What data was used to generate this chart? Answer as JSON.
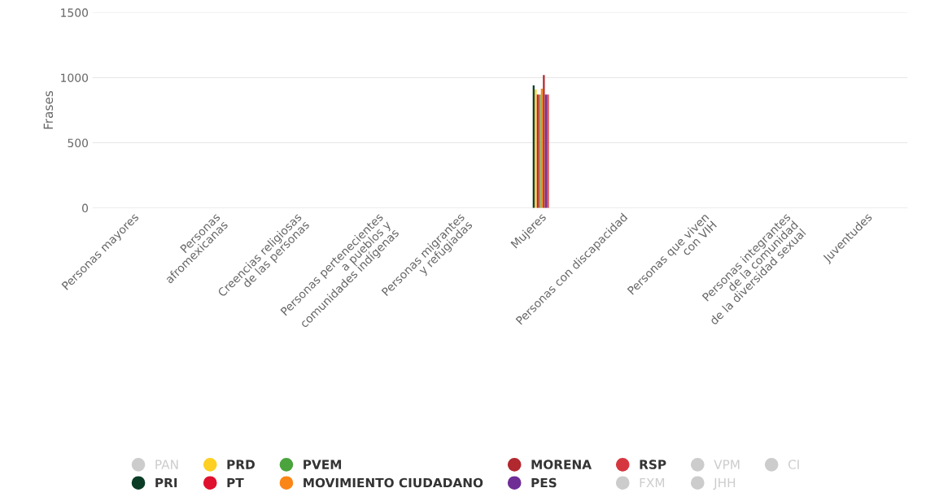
{
  "chart_data": {
    "type": "bar",
    "ylabel": "Frases",
    "ylim": [
      0,
      1500
    ],
    "yticks": [
      0,
      500,
      1000,
      1500
    ],
    "grid": "y",
    "legend": "bottom",
    "categories": [
      "Personas mayores",
      "Personas\nafromexicanas",
      "Creencias religiosas\nde las personas",
      "Personas pertenecientes\na pueblos y\ncomunidades indígenas",
      "Personas migrantes\ny refugiadas",
      "Mujeres",
      "Personas con discapacidad",
      "Personas que viven\ncon VIH",
      "Personas integrantes\nde la comunidad\nde la diversidad sexual",
      "Juventudes"
    ],
    "series": [
      {
        "name": "PAN",
        "color": "#cccccc",
        "values": [
          null,
          null,
          null,
          null,
          null,
          null,
          null,
          null,
          null,
          null
        ]
      },
      {
        "name": "PRI",
        "color": "#0b3d26",
        "values": [
          null,
          null,
          null,
          null,
          null,
          940,
          null,
          null,
          null,
          null
        ]
      },
      {
        "name": "PRD",
        "color": "#fdd023",
        "values": [
          null,
          null,
          null,
          null,
          null,
          910,
          null,
          null,
          null,
          null
        ]
      },
      {
        "name": "PT",
        "color": "#e0112f",
        "values": [
          null,
          null,
          null,
          null,
          null,
          870,
          null,
          null,
          null,
          null
        ]
      },
      {
        "name": "PVEM",
        "color": "#4aa33d",
        "values": [
          null,
          null,
          null,
          null,
          null,
          870,
          null,
          null,
          null,
          null
        ]
      },
      {
        "name": "MOVIMIENTO CIUDADANO",
        "color": "#fb8618",
        "values": [
          null,
          null,
          null,
          null,
          null,
          915,
          null,
          null,
          null,
          null
        ]
      },
      {
        "name": "MORENA",
        "color": "#b1282e",
        "values": [
          null,
          null,
          null,
          null,
          null,
          1020,
          null,
          null,
          null,
          null
        ]
      },
      {
        "name": "PES",
        "color": "#6f2e96",
        "values": [
          null,
          null,
          null,
          null,
          null,
          870,
          null,
          null,
          null,
          null
        ]
      },
      {
        "name": "RSP",
        "color": "#d6373f",
        "values": [
          null,
          null,
          null,
          null,
          null,
          870,
          null,
          null,
          null,
          null
        ]
      },
      {
        "name": "FXM",
        "color": "#cccccc",
        "values": [
          null,
          null,
          null,
          null,
          null,
          null,
          null,
          null,
          null,
          null
        ]
      },
      {
        "name": "VPM",
        "color": "#cccccc",
        "values": [
          null,
          null,
          null,
          null,
          null,
          null,
          null,
          null,
          null,
          null
        ]
      },
      {
        "name": "JHH",
        "color": "#cccccc",
        "values": [
          null,
          null,
          null,
          null,
          null,
          null,
          null,
          null,
          null,
          null
        ]
      },
      {
        "name": "CI",
        "color": "#cccccc",
        "values": [
          null,
          null,
          null,
          null,
          null,
          null,
          null,
          null,
          null,
          null
        ]
      }
    ]
  }
}
